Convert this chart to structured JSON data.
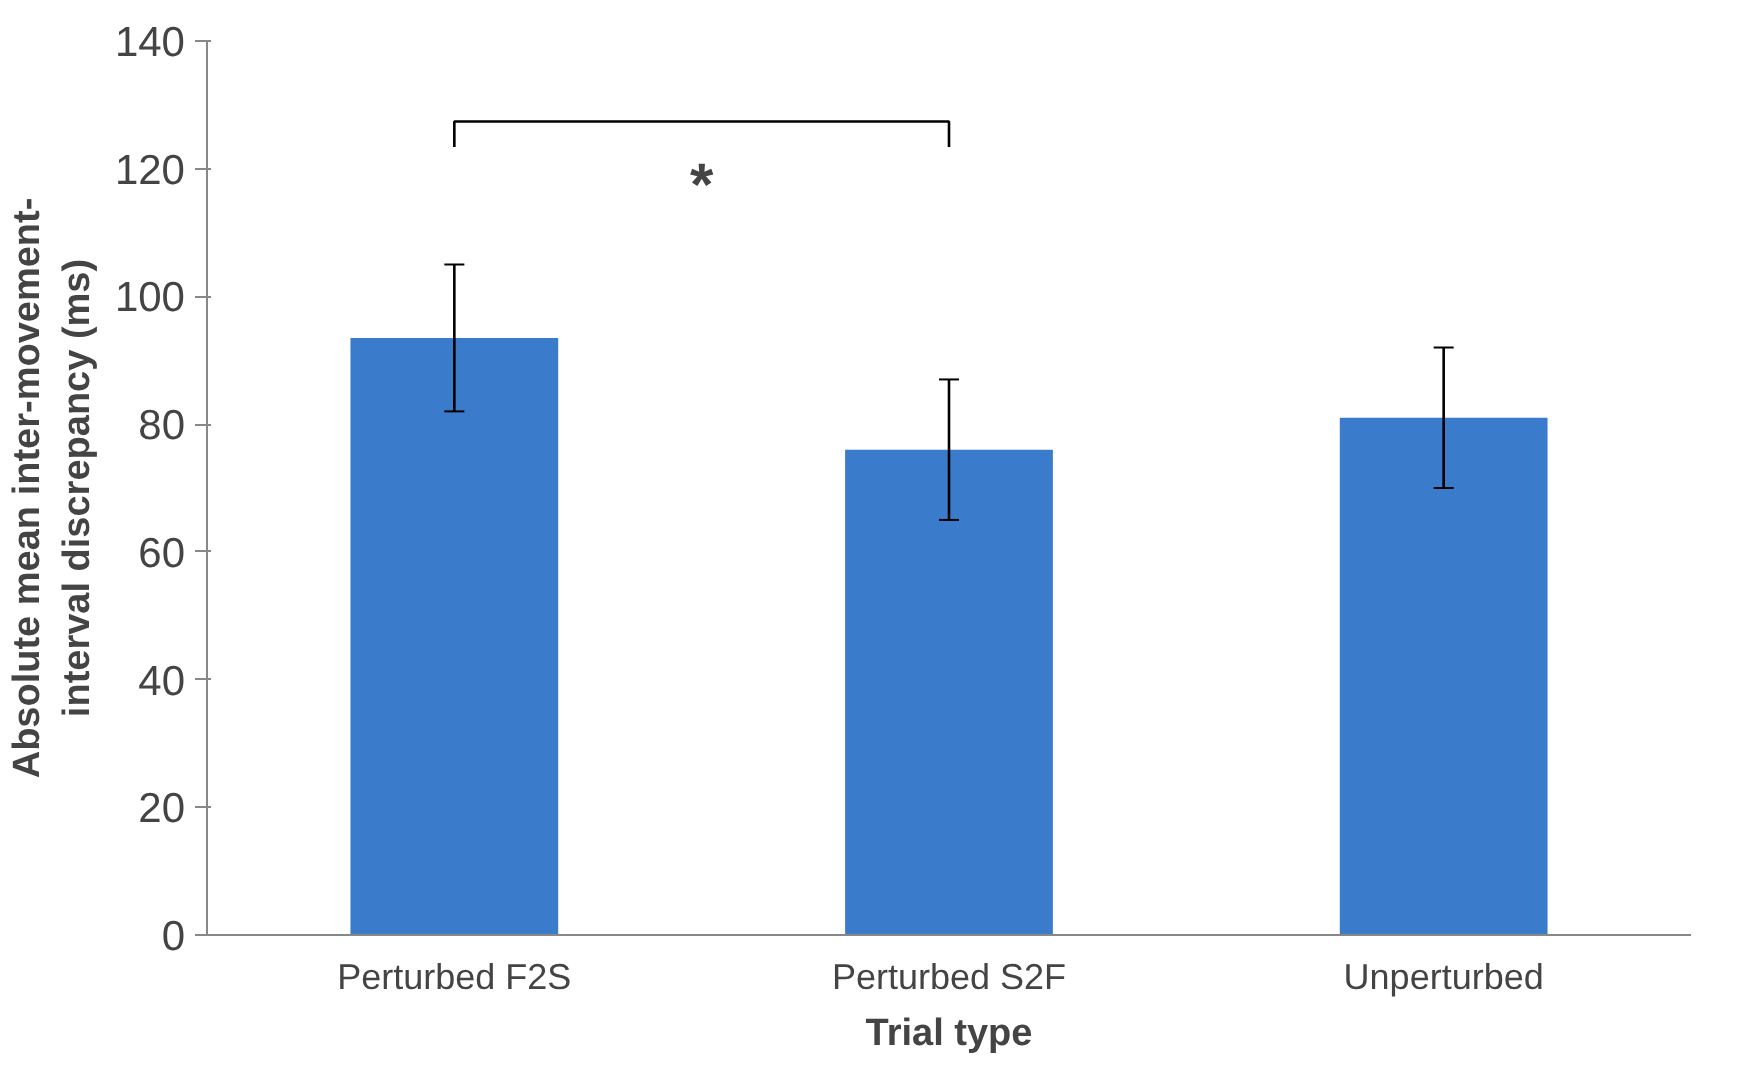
{
  "chart_data": {
    "type": "bar",
    "xlabel": "Trial type",
    "ylabel": "Absolute mean inter-movement-interval discrepancy (ms)",
    "categories": [
      "Perturbed F2S",
      "Perturbed S2F",
      "Unperturbed"
    ],
    "values": [
      93.5,
      76,
      81
    ],
    "errors": [
      11.5,
      11,
      11
    ],
    "color": "#3b7bcb",
    "ylim": [
      0,
      140
    ],
    "yticks": [
      0,
      20,
      40,
      60,
      80,
      100,
      120,
      140
    ],
    "grid": false,
    "annotations": [
      "*"
    ]
  }
}
